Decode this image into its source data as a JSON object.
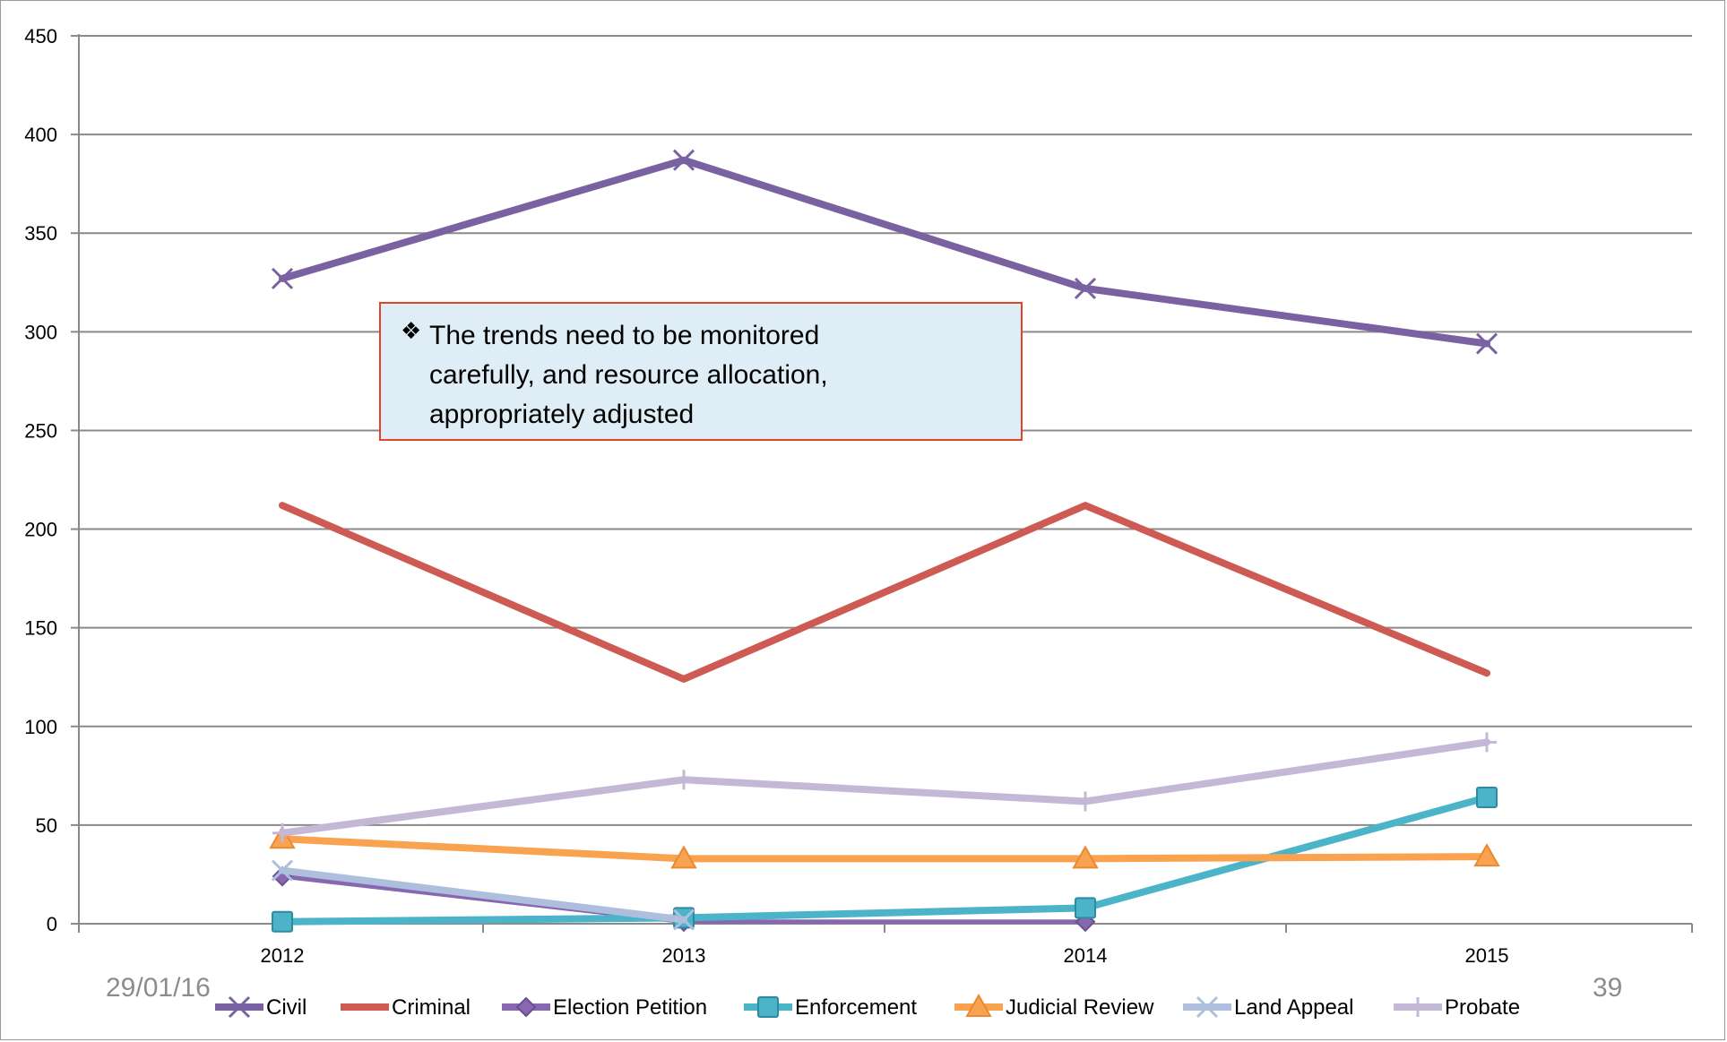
{
  "footer": {
    "date": "29/01/16",
    "page": "39"
  },
  "callout": {
    "bullet": "❖",
    "text": "The trends need to be monitored\ncarefully, and resource allocation,\nappropriately adjusted"
  },
  "chart_data": {
    "type": "line",
    "categories": [
      "2012",
      "2013",
      "2014",
      "2015"
    ],
    "ylim": [
      0,
      450
    ],
    "yticks": [
      0,
      50,
      100,
      150,
      200,
      250,
      300,
      350,
      400,
      450
    ],
    "grid": true,
    "legend_position": "bottom",
    "title": "",
    "xlabel": "",
    "ylabel": "",
    "series": [
      {
        "name": "Civil",
        "values": [
          327,
          387,
          322,
          294
        ],
        "color": "#7a61a1",
        "marker": "x",
        "width": 8
      },
      {
        "name": "Criminal",
        "values": [
          212,
          124,
          212,
          127
        ],
        "color": "#cd5b53",
        "marker": "none",
        "width": 8
      },
      {
        "name": "Election Petition",
        "values": [
          24,
          1,
          1,
          null
        ],
        "color": "#8767b0",
        "marker": "diamond",
        "width": 5
      },
      {
        "name": "Enforcement",
        "values": [
          1,
          3,
          8,
          64
        ],
        "color": "#4cb4c9",
        "marker": "square",
        "width": 8
      },
      {
        "name": "Judicial Review",
        "values": [
          43,
          33,
          33,
          34
        ],
        "color": "#f9a24f",
        "marker": "triangle",
        "width": 8
      },
      {
        "name": "Land Appeal",
        "values": [
          27,
          2,
          null,
          null
        ],
        "color": "#adbfdd",
        "marker": "x",
        "width": 8
      },
      {
        "name": "Probate",
        "values": [
          46,
          73,
          62,
          92
        ],
        "color": "#c3b8d6",
        "marker": "plus",
        "width": 8
      }
    ]
  }
}
